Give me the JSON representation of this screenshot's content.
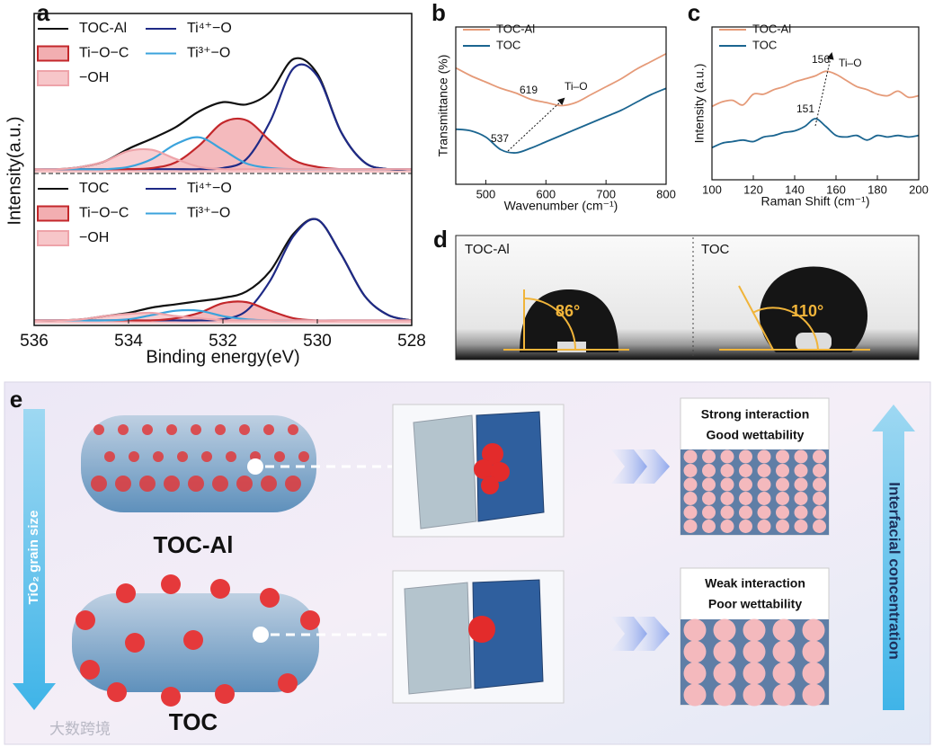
{
  "panel_labels": [
    "a",
    "b",
    "c",
    "d",
    "e"
  ],
  "chart_data": [
    {
      "type": "line",
      "ylabel": "Intensity(a.u.)",
      "x": [
        536,
        535.5,
        535,
        534.5,
        534,
        533.5,
        533,
        532.5,
        532,
        531.5,
        531,
        530.5,
        530,
        529.5,
        529,
        528.5,
        528
      ],
      "xlim": [
        536,
        528
      ],
      "ylim": [
        0,
        140
      ],
      "series": [
        {
          "name": "TOC-Al",
          "color": "#111111",
          "values": [
            3,
            3,
            5,
            10,
            21,
            30,
            40,
            54,
            62,
            60,
            71,
            100,
            87,
            36,
            9,
            3,
            3
          ]
        },
        {
          "name": "Ti⁴⁺−O",
          "color": "#1f2a86",
          "values": [
            3,
            3,
            3,
            3,
            3,
            3,
            3,
            3,
            4,
            12,
            45,
            92,
            85,
            36,
            9,
            3,
            3
          ]
        },
        {
          "name": "Ti−O−C",
          "color": "#c3272b",
          "fill": "#f2aeb1",
          "values": [
            3,
            3,
            3,
            3,
            3,
            4,
            9,
            24,
            44,
            46,
            28,
            11,
            5,
            3,
            3,
            3,
            3
          ]
        },
        {
          "name": "Ti³⁺−O",
          "color": "#3ba3dc",
          "values": [
            3,
            3,
            3,
            3,
            5,
            12,
            25,
            31,
            20,
            8,
            4,
            3,
            3,
            3,
            3,
            3,
            3
          ]
        },
        {
          "name": "−OH",
          "color": "#eea3a9",
          "fill": "#f7c6c9",
          "values": [
            3,
            3,
            5,
            10,
            19,
            20,
            12,
            5,
            3,
            3,
            3,
            3,
            3,
            3,
            3,
            3,
            3
          ]
        }
      ]
    },
    {
      "type": "line",
      "xlabel": "Binding energy(eV)",
      "x": [
        536,
        535.5,
        535,
        534.5,
        534,
        533.5,
        533,
        532.5,
        532,
        531.5,
        531,
        530.5,
        530,
        529.5,
        529,
        528.5,
        528
      ],
      "xlim": [
        536,
        528
      ],
      "xticks": [
        536,
        534,
        532,
        530,
        528
      ],
      "ylim": [
        0,
        140
      ],
      "series": [
        {
          "name": "TOC",
          "color": "#111111",
          "values": [
            3,
            3,
            4,
            7,
            10,
            15,
            18,
            21,
            24,
            30,
            49,
            84,
            97,
            65,
            26,
            8,
            3
          ]
        },
        {
          "name": "Ti⁴⁺−O",
          "color": "#1f2a86",
          "values": [
            3,
            3,
            3,
            3,
            3,
            3,
            3,
            3,
            4,
            12,
            40,
            82,
            97,
            65,
            26,
            8,
            3
          ]
        },
        {
          "name": "Ti−O−C",
          "color": "#c3272b",
          "fill": "#f2aeb1",
          "values": [
            3,
            3,
            3,
            3,
            3,
            3,
            5,
            10,
            19,
            20,
            12,
            5,
            3,
            3,
            3,
            3,
            3
          ]
        },
        {
          "name": "Ti³⁺−O",
          "color": "#3ba3dc",
          "values": [
            3,
            3,
            3,
            3,
            4,
            8,
            12,
            12,
            7,
            4,
            3,
            3,
            3,
            3,
            3,
            3,
            3
          ]
        },
        {
          "name": "−OH",
          "color": "#eea3a9",
          "fill": "#f7c6c9",
          "values": [
            3,
            3,
            4,
            7,
            9,
            10,
            7,
            5,
            3,
            3,
            3,
            3,
            3,
            3,
            3,
            3,
            3
          ]
        }
      ]
    },
    {
      "type": "line",
      "xlabel": "Wavenumber (cm⁻¹)",
      "ylabel": "Transmittance (%)",
      "x": [
        450,
        475,
        500,
        525,
        550,
        575,
        600,
        625,
        650,
        675,
        700,
        725,
        750,
        775,
        800
      ],
      "xlim": [
        450,
        800
      ],
      "xticks": [
        500,
        600,
        700,
        800
      ],
      "ylim": [
        0,
        100
      ],
      "series": [
        {
          "name": "TOC-Al",
          "color": "#e59a78",
          "values": [
            74,
            69,
            65,
            61,
            58,
            54,
            52,
            50,
            52,
            57,
            62,
            67,
            73,
            78,
            83
          ]
        },
        {
          "name": "TOC",
          "color": "#1b6590",
          "values": [
            35,
            34,
            30,
            22,
            20,
            23,
            27,
            31,
            35,
            39,
            43,
            47,
            52,
            57,
            61
          ]
        }
      ],
      "annotations": [
        "619",
        "Ti–O",
        "537"
      ]
    },
    {
      "type": "line",
      "xlabel": "Raman Shift (cm⁻¹)",
      "ylabel": "Intensity (a.u.)",
      "x": [
        100,
        105,
        110,
        115,
        120,
        125,
        130,
        135,
        140,
        145,
        150,
        155,
        160,
        165,
        170,
        175,
        180,
        185,
        190,
        195,
        200
      ],
      "xlim": [
        100,
        200
      ],
      "xticks": [
        100,
        120,
        140,
        160,
        180,
        200
      ],
      "ylim": [
        0,
        100
      ],
      "series": [
        {
          "name": "TOC-Al",
          "color": "#e59a78",
          "values": [
            48,
            51,
            52,
            49,
            56,
            56,
            59,
            61,
            64,
            66,
            68,
            71,
            69,
            65,
            61,
            59,
            56,
            55,
            58,
            54,
            55
          ]
        },
        {
          "name": "TOC",
          "color": "#1b6590",
          "values": [
            21,
            24,
            25,
            26,
            25,
            28,
            29,
            31,
            32,
            35,
            40,
            35,
            29,
            28,
            29,
            26,
            29,
            28,
            29,
            28,
            29
          ]
        }
      ],
      "annotations": [
        "156",
        "Ti–O",
        "151"
      ]
    }
  ],
  "contact_angle": {
    "samples": [
      {
        "name": "TOC-Al",
        "angle": "86°"
      },
      {
        "name": "TOC",
        "angle": "110°"
      }
    ]
  },
  "schematic": {
    "left_axis": "TiO₂ grain size",
    "samples": [
      {
        "name": "TOC-Al",
        "lines": [
          "Strong interaction",
          "Good wettability"
        ]
      },
      {
        "name": "TOC",
        "lines": [
          "Weak interaction",
          "Poor wettability"
        ]
      }
    ],
    "right_axis": "Interfacial concentration",
    "watermark": "大数跨境"
  }
}
